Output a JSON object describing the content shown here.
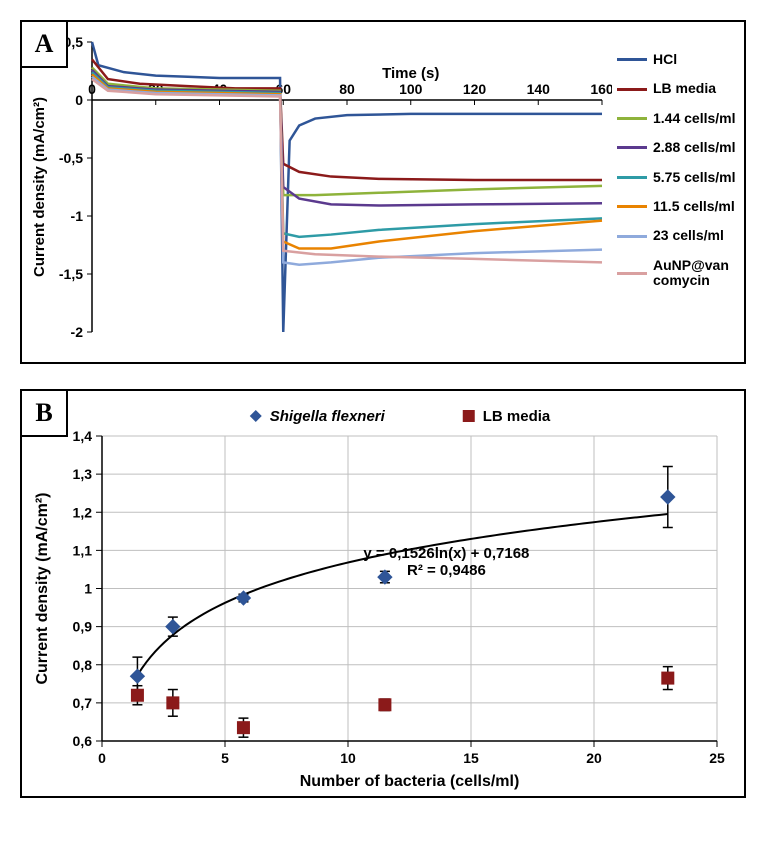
{
  "panel_a": {
    "label": "A",
    "type": "line",
    "xaxis": {
      "label": "Time (s)",
      "min": 0,
      "max": 160,
      "tick_step": 20,
      "label_fontsize": 15
    },
    "yaxis": {
      "label": "Current density (mA/cm²)",
      "min": -2,
      "max": 0.5,
      "tick_step": 0.5,
      "label_fontsize": 15
    },
    "tick_fontsize": 14,
    "background_color": "#ffffff",
    "series": [
      {
        "name": "HCl",
        "color": "#2f5597",
        "data": [
          [
            0,
            0.5
          ],
          [
            2,
            0.3
          ],
          [
            10,
            0.24
          ],
          [
            20,
            0.21
          ],
          [
            30,
            0.2
          ],
          [
            40,
            0.19
          ],
          [
            50,
            0.19
          ],
          [
            59,
            0.19
          ],
          [
            60,
            -2.0
          ],
          [
            62,
            -0.35
          ],
          [
            65,
            -0.22
          ],
          [
            70,
            -0.16
          ],
          [
            80,
            -0.13
          ],
          [
            100,
            -0.12
          ],
          [
            120,
            -0.12
          ],
          [
            140,
            -0.12
          ],
          [
            160,
            -0.12
          ]
        ]
      },
      {
        "name": "LB media",
        "color": "#8b1a1a",
        "data": [
          [
            0,
            0.35
          ],
          [
            5,
            0.18
          ],
          [
            15,
            0.14
          ],
          [
            30,
            0.12
          ],
          [
            45,
            0.1
          ],
          [
            59,
            0.1
          ],
          [
            60,
            -0.55
          ],
          [
            65,
            -0.62
          ],
          [
            75,
            -0.66
          ],
          [
            90,
            -0.68
          ],
          [
            120,
            -0.69
          ],
          [
            160,
            -0.69
          ]
        ]
      },
      {
        "name": "1.44 cells/ml",
        "color": "#8eb33b",
        "data": [
          [
            0,
            0.28
          ],
          [
            5,
            0.14
          ],
          [
            20,
            0.1
          ],
          [
            40,
            0.09
          ],
          [
            59,
            0.08
          ],
          [
            60,
            -0.82
          ],
          [
            70,
            -0.82
          ],
          [
            90,
            -0.8
          ],
          [
            120,
            -0.77
          ],
          [
            160,
            -0.74
          ]
        ]
      },
      {
        "name": "2.88 cells/ml",
        "color": "#5b3a8e",
        "data": [
          [
            0,
            0.26
          ],
          [
            5,
            0.12
          ],
          [
            20,
            0.09
          ],
          [
            40,
            0.08
          ],
          [
            59,
            0.07
          ],
          [
            60,
            -0.75
          ],
          [
            65,
            -0.85
          ],
          [
            75,
            -0.9
          ],
          [
            90,
            -0.91
          ],
          [
            120,
            -0.9
          ],
          [
            160,
            -0.89
          ]
        ]
      },
      {
        "name": "5.75 cells/ml",
        "color": "#2e9ba6",
        "data": [
          [
            0,
            0.24
          ],
          [
            5,
            0.11
          ],
          [
            20,
            0.08
          ],
          [
            40,
            0.07
          ],
          [
            59,
            0.06
          ],
          [
            60,
            -1.15
          ],
          [
            65,
            -1.18
          ],
          [
            75,
            -1.16
          ],
          [
            90,
            -1.12
          ],
          [
            120,
            -1.07
          ],
          [
            160,
            -1.02
          ]
        ]
      },
      {
        "name": "11.5 cells/ml",
        "color": "#e98300",
        "data": [
          [
            0,
            0.22
          ],
          [
            5,
            0.1
          ],
          [
            20,
            0.07
          ],
          [
            40,
            0.06
          ],
          [
            59,
            0.05
          ],
          [
            60,
            -1.22
          ],
          [
            65,
            -1.28
          ],
          [
            75,
            -1.28
          ],
          [
            90,
            -1.22
          ],
          [
            120,
            -1.13
          ],
          [
            160,
            -1.04
          ]
        ]
      },
      {
        "name": "23 cells/ml",
        "color": "#8faadc",
        "data": [
          [
            0,
            0.2
          ],
          [
            5,
            0.09
          ],
          [
            20,
            0.06
          ],
          [
            40,
            0.05
          ],
          [
            59,
            0.04
          ],
          [
            60,
            -1.4
          ],
          [
            65,
            -1.42
          ],
          [
            75,
            -1.4
          ],
          [
            90,
            -1.36
          ],
          [
            120,
            -1.32
          ],
          [
            160,
            -1.29
          ]
        ]
      },
      {
        "name": "AuNP@van comycin",
        "color": "#d9a0a0",
        "data": [
          [
            0,
            0.18
          ],
          [
            5,
            0.08
          ],
          [
            20,
            0.05
          ],
          [
            40,
            0.04
          ],
          [
            59,
            0.03
          ],
          [
            60,
            -1.3
          ],
          [
            70,
            -1.33
          ],
          [
            90,
            -1.35
          ],
          [
            120,
            -1.37
          ],
          [
            160,
            -1.4
          ]
        ]
      }
    ]
  },
  "panel_b": {
    "label": "B",
    "type": "scatter",
    "xaxis": {
      "label": "Number of bacteria (cells/ml)",
      "min": 0,
      "max": 25,
      "tick_step": 5,
      "label_fontsize": 16
    },
    "yaxis": {
      "label": "Current density (mA/cm²)",
      "min": 0.6,
      "max": 1.4,
      "tick_step": 0.1,
      "label_fontsize": 16
    },
    "tick_fontsize": 14,
    "grid_color": "#bfbfbf",
    "background_color": "#ffffff",
    "equation": "y = 0,1526ln(x) + 0,7168",
    "r2": "R² = 0,9486",
    "fit_curve": {
      "color": "#000000",
      "coef": 0.1526,
      "intercept": 0.7168,
      "xmin": 1.44,
      "xmax": 23
    },
    "series": [
      {
        "name": "Shigella flexneri",
        "italic": true,
        "marker": "diamond",
        "color": "#2f5597",
        "points": [
          {
            "x": 1.44,
            "y": 0.77,
            "err": 0.05
          },
          {
            "x": 2.88,
            "y": 0.9,
            "err": 0.025
          },
          {
            "x": 5.75,
            "y": 0.975,
            "err": 0.01
          },
          {
            "x": 11.5,
            "y": 1.03,
            "err": 0.015
          },
          {
            "x": 23,
            "y": 1.24,
            "err": 0.08
          }
        ]
      },
      {
        "name": "LB media",
        "italic": false,
        "marker": "square",
        "color": "#8b1a1a",
        "points": [
          {
            "x": 1.44,
            "y": 0.72,
            "err": 0.025
          },
          {
            "x": 2.88,
            "y": 0.7,
            "err": 0.035
          },
          {
            "x": 5.75,
            "y": 0.635,
            "err": 0.025
          },
          {
            "x": 11.5,
            "y": 0.695,
            "err": 0.015
          },
          {
            "x": 23,
            "y": 0.765,
            "err": 0.03
          }
        ]
      }
    ]
  }
}
